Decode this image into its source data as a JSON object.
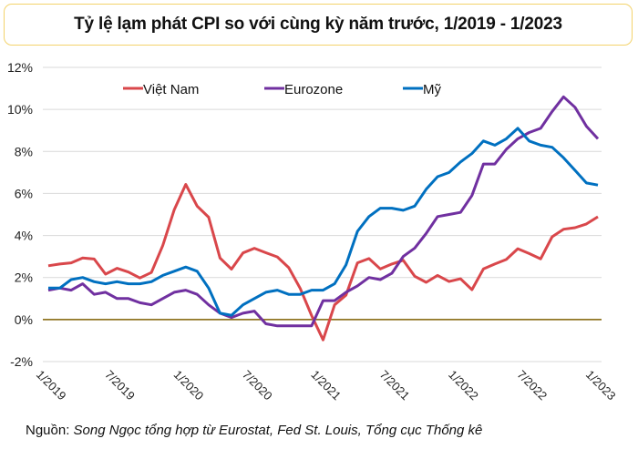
{
  "title": "Tỷ lệ lạm phát CPI so với cùng kỳ năm trước, 1/2019 - 1/2023",
  "source_label": "Nguồn:",
  "source_text": "Song Ngọc tổng hợp từ Eurostat, Fed St. Louis, Tổng cục Thống kê",
  "chart_data": {
    "type": "line",
    "title": "Tỷ lệ lạm phát CPI so với cùng kỳ năm trước, 1/2019 - 1/2023",
    "xlabel": "",
    "ylabel": "",
    "ylim": [
      -2,
      12
    ],
    "yticks": [
      -2,
      0,
      2,
      4,
      6,
      8,
      10,
      12
    ],
    "ytick_labels": [
      "-2%",
      "0%",
      "2%",
      "4%",
      "6%",
      "8%",
      "10%",
      "12%"
    ],
    "xtick_labels": [
      "1/2019",
      "7/2019",
      "1/2020",
      "7/2020",
      "1/2021",
      "7/2021",
      "1/2022",
      "7/2022",
      "1/2023"
    ],
    "xtick_every_months": 6,
    "x_start": "1/2019",
    "x_end": "1/2023",
    "grid": true,
    "legend_position": "top",
    "zero_line_color": "#7f6000",
    "series": [
      {
        "name": "Việt Nam",
        "color": "#d9474b",
        "values": [
          2.56,
          2.64,
          2.7,
          2.93,
          2.88,
          2.16,
          2.44,
          2.26,
          1.98,
          2.24,
          3.52,
          5.23,
          6.43,
          5.4,
          4.87,
          2.93,
          2.4,
          3.17,
          3.39,
          3.18,
          2.98,
          2.47,
          1.48,
          0.19,
          -0.97,
          0.7,
          1.16,
          2.7,
          2.9,
          2.41,
          2.64,
          2.82,
          2.06,
          1.77,
          2.1,
          1.81,
          1.94,
          1.42,
          2.41,
          2.64,
          2.86,
          3.37,
          3.14,
          2.89,
          3.94,
          4.3,
          4.37,
          4.55,
          4.89
        ]
      },
      {
        "name": "Eurozone",
        "color": "#7030a0",
        "values": [
          1.4,
          1.5,
          1.4,
          1.7,
          1.2,
          1.3,
          1.0,
          1.0,
          0.8,
          0.7,
          1.0,
          1.3,
          1.4,
          1.2,
          0.7,
          0.3,
          0.1,
          0.3,
          0.4,
          -0.2,
          -0.3,
          -0.3,
          -0.3,
          -0.3,
          0.9,
          0.9,
          1.3,
          1.6,
          2.0,
          1.9,
          2.2,
          3.0,
          3.4,
          4.1,
          4.9,
          5.0,
          5.1,
          5.9,
          7.4,
          7.4,
          8.1,
          8.6,
          8.9,
          9.1,
          9.9,
          10.6,
          10.1,
          9.2,
          8.6
        ]
      },
      {
        "name": "Mỹ",
        "color": "#0070c0",
        "values": [
          1.5,
          1.5,
          1.9,
          2.0,
          1.8,
          1.7,
          1.8,
          1.7,
          1.7,
          1.8,
          2.1,
          2.3,
          2.5,
          2.3,
          1.5,
          0.3,
          0.2,
          0.7,
          1.0,
          1.3,
          1.4,
          1.2,
          1.2,
          1.4,
          1.4,
          1.7,
          2.6,
          4.2,
          4.9,
          5.3,
          5.3,
          5.2,
          5.4,
          6.2,
          6.8,
          7.0,
          7.5,
          7.9,
          8.5,
          8.3,
          8.6,
          9.1,
          8.5,
          8.3,
          8.2,
          7.7,
          7.1,
          6.5,
          6.4
        ]
      }
    ]
  }
}
